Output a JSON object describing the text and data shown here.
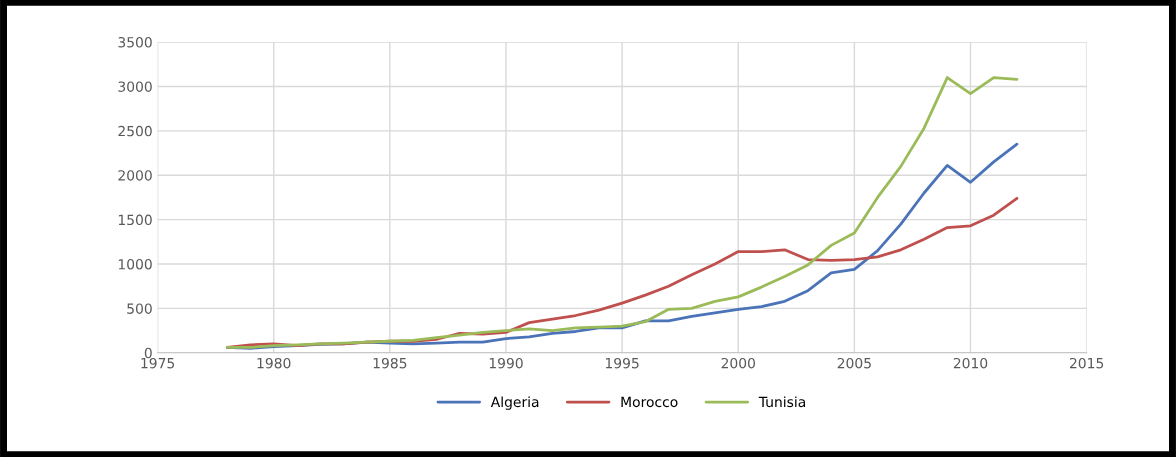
{
  "chart_data": {
    "type": "line",
    "x": [
      1978,
      1979,
      1980,
      1981,
      1982,
      1983,
      1984,
      1985,
      1986,
      1987,
      1988,
      1989,
      1990,
      1991,
      1992,
      1993,
      1994,
      1995,
      1996,
      1997,
      1998,
      1999,
      2000,
      2001,
      2002,
      2003,
      2004,
      2005,
      2006,
      2007,
      2008,
      2009,
      2010,
      2011,
      2012
    ],
    "series": [
      {
        "name": "Algeria",
        "color": "#4a73b8",
        "values": [
          60,
          50,
          70,
          80,
          95,
          100,
          120,
          110,
          100,
          110,
          120,
          120,
          160,
          180,
          220,
          240,
          280,
          280,
          360,
          360,
          410,
          450,
          490,
          520,
          580,
          700,
          900,
          940,
          1150,
          1450,
          1800,
          2110,
          1920,
          2150,
          2350
        ]
      },
      {
        "name": "Morocco",
        "color": "#c0504d",
        "values": [
          60,
          90,
          100,
          80,
          100,
          100,
          120,
          130,
          130,
          150,
          220,
          210,
          230,
          340,
          380,
          420,
          480,
          560,
          650,
          750,
          880,
          1000,
          1140,
          1140,
          1160,
          1050,
          1040,
          1050,
          1080,
          1160,
          1280,
          1410,
          1430,
          1550,
          1740
        ]
      },
      {
        "name": "Tunisia",
        "color": "#9bbb59",
        "values": [
          60,
          60,
          80,
          90,
          100,
          110,
          120,
          130,
          140,
          170,
          200,
          230,
          250,
          270,
          250,
          280,
          290,
          300,
          350,
          490,
          500,
          580,
          630,
          740,
          860,
          990,
          1210,
          1350,
          1750,
          2100,
          2530,
          3100,
          2920,
          3100,
          3080
        ]
      }
    ],
    "xlim": [
      1975,
      2015
    ],
    "xticks": [
      1975,
      1980,
      1985,
      1990,
      1995,
      2000,
      2005,
      2010,
      2015
    ],
    "ylim": [
      0,
      3500
    ],
    "yticks": [
      0,
      500,
      1000,
      1500,
      2000,
      2500,
      3000,
      3500
    ],
    "grid": true,
    "legend": "bottom",
    "marker": "none",
    "line_style": "solid"
  }
}
